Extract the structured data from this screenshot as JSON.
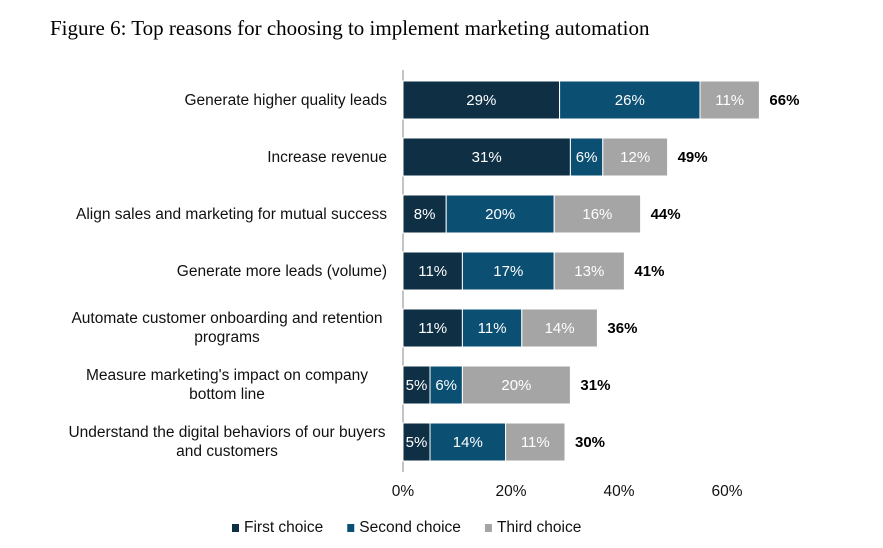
{
  "chart_data": {
    "type": "stacked-bar-horizontal",
    "title": "Figure 6: Top reasons for choosing to implement marketing automation",
    "categories": [
      "Generate higher quality leads",
      "Increase revenue",
      "Align sales and marketing for mutual success",
      "Generate more leads (volume)",
      "Automate customer onboarding and retention programs",
      "Measure marketing's impact on company bottom line",
      "Understand the digital behaviors of our buyers and customers"
    ],
    "series": [
      {
        "name": "First choice",
        "color": "#0f2f45",
        "values": [
          29,
          31,
          8,
          11,
          11,
          5,
          5
        ],
        "value_labels": [
          "29%",
          "31%",
          "8%",
          "11%",
          "11%",
          "5%",
          "5%"
        ]
      },
      {
        "name": "Second choice",
        "color": "#0b4f73",
        "values": [
          26,
          6,
          20,
          17,
          11,
          6,
          14
        ],
        "value_labels": [
          "26%",
          "6%",
          "20%",
          "17%",
          "11%",
          "6%",
          "14%"
        ]
      },
      {
        "name": "Third choice",
        "color": "#a5a5a5",
        "values": [
          11,
          12,
          16,
          13,
          14,
          20,
          11
        ],
        "value_labels": [
          "11%",
          "12%",
          "16%",
          "13%",
          "14%",
          "20%",
          "11%"
        ]
      }
    ],
    "totals": {
      "values": [
        66,
        49,
        44,
        41,
        36,
        31,
        30
      ],
      "value_labels": [
        "66%",
        "49%",
        "44%",
        "41%",
        "36%",
        "31%",
        "30%"
      ]
    },
    "xlim": [
      0,
      70
    ],
    "xticks": [
      {
        "value": 0,
        "label": "0%"
      },
      {
        "value": 20,
        "label": "20%"
      },
      {
        "value": 40,
        "label": "40%"
      },
      {
        "value": 60,
        "label": "60%"
      }
    ],
    "legend": "bottom"
  }
}
